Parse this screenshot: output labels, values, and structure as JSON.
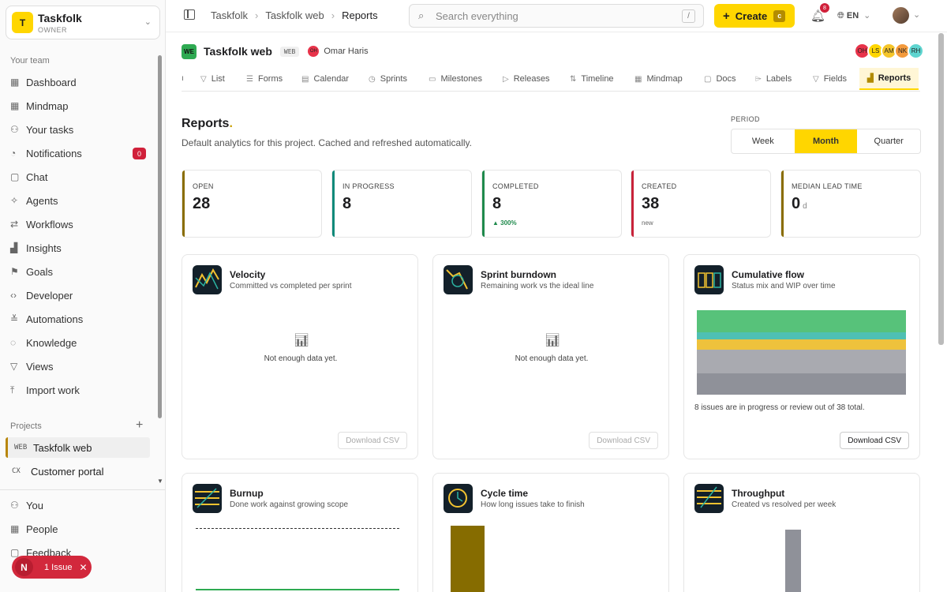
{
  "org": {
    "initial": "T",
    "name": "Taskfolk",
    "role": "OWNER"
  },
  "sidebar": {
    "section_team": "Your team",
    "items": [
      {
        "label": "Dashboard",
        "icon": "grid-icon"
      },
      {
        "label": "Mindmap",
        "icon": "mindmap-icon"
      },
      {
        "label": "Your tasks",
        "icon": "user-icon"
      },
      {
        "label": "Notifications",
        "icon": "bell-icon",
        "badge": "0"
      },
      {
        "label": "Chat",
        "icon": "chat-icon"
      },
      {
        "label": "Agents",
        "icon": "sparkle-icon"
      },
      {
        "label": "Workflows",
        "icon": "arrows-icon"
      },
      {
        "label": "Insights",
        "icon": "chart-icon"
      },
      {
        "label": "Goals",
        "icon": "goal-icon"
      },
      {
        "label": "Developer",
        "icon": "code-icon"
      },
      {
        "label": "Automations",
        "icon": "sliders-icon"
      },
      {
        "label": "Knowledge",
        "icon": "book-icon"
      },
      {
        "label": "Views",
        "icon": "filter-icon"
      },
      {
        "label": "Import work",
        "icon": "import-icon"
      }
    ],
    "section_projects": "Projects",
    "projects": [
      {
        "code": "WEB",
        "name": "Taskfolk web"
      },
      {
        "code": "CX",
        "name": "Customer portal"
      }
    ],
    "bottom": [
      {
        "label": "You",
        "icon": "user-icon"
      },
      {
        "label": "People",
        "icon": "people-icon"
      },
      {
        "label": "Feedback",
        "icon": "feedback-icon"
      }
    ],
    "issue_pill": {
      "letter": "N",
      "label": "1 Issue"
    }
  },
  "topbar": {
    "breadcrumbs": [
      "Taskfolk",
      "Taskfolk web",
      "Reports"
    ],
    "search_placeholder": "Search everything",
    "search_kbd": "/",
    "create_label": "Create",
    "create_kbd": "c",
    "notif_count": "8",
    "lang": "EN"
  },
  "project": {
    "badge": "WE",
    "title": "Taskfolk web",
    "tag": "WEB",
    "owner_initials": "OH",
    "owner_name": "Omar Haris",
    "team": [
      {
        "initials": "OH",
        "color": "#e8334a"
      },
      {
        "initials": "LS",
        "color": "#ffd600"
      },
      {
        "initials": "AM",
        "color": "#f5c52a"
      },
      {
        "initials": "NK",
        "color": "#f39a3c"
      },
      {
        "initials": "RH",
        "color": "#5fd5d0"
      }
    ]
  },
  "tabs": [
    "List",
    "Forms",
    "Calendar",
    "Sprints",
    "Milestones",
    "Releases",
    "Timeline",
    "Mindmap",
    "Docs",
    "Labels",
    "Fields",
    "Reports"
  ],
  "reports": {
    "title": "Reports",
    "title_dot": ".",
    "subtitle": "Default analytics for this project. Cached and refreshed automatically.",
    "period_label": "PERIOD",
    "periods": [
      "Week",
      "Month",
      "Quarter"
    ],
    "period_selected": "Month"
  },
  "kpis": [
    {
      "label": "OPEN",
      "value": "28",
      "unit": "",
      "foot": "",
      "color": "#8a6d00"
    },
    {
      "label": "IN PROGRESS",
      "value": "8",
      "unit": "",
      "foot": "",
      "color": "#0e8a7a"
    },
    {
      "label": "COMPLETED",
      "value": "8",
      "unit": "",
      "foot": "▲ 300%",
      "color": "#1f8a4c"
    },
    {
      "label": "CREATED",
      "value": "38",
      "unit": "",
      "foot": "new",
      "color": "#c8233a"
    },
    {
      "label": "MEDIAN LEAD TIME",
      "value": "0",
      "unit": "d",
      "foot": "",
      "color": "#8a6d00"
    }
  ],
  "cards": {
    "velocity": {
      "title": "Velocity",
      "subtitle": "Committed vs completed per sprint",
      "empty": "Not enough data yet.",
      "csv": "Download CSV"
    },
    "burndown": {
      "title": "Sprint burndown",
      "subtitle": "Remaining work vs the ideal line",
      "empty": "Not enough data yet.",
      "csv": "Download CSV"
    },
    "cumflow": {
      "title": "Cumulative flow",
      "subtitle": "Status mix and WIP over time",
      "note": "8 issues are in progress or review out of 38 total.",
      "csv": "Download CSV"
    },
    "burnup": {
      "title": "Burnup",
      "subtitle": "Done work against growing scope"
    },
    "cycle": {
      "title": "Cycle time",
      "subtitle": "How long issues take to finish"
    },
    "throughput": {
      "title": "Throughput",
      "subtitle": "Created vs resolved per week"
    }
  },
  "colors": {
    "accent": "#ffd600",
    "danger": "#d0203a"
  }
}
